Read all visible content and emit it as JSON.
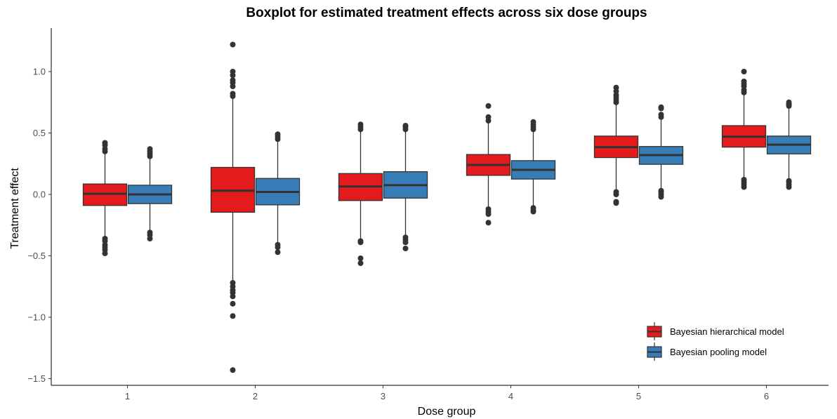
{
  "chart_data": {
    "type": "boxplot",
    "title": "Boxplot for estimated treatment effects across six dose groups",
    "xlabel": "Dose group",
    "ylabel": "Treatment effect",
    "categories": [
      "1",
      "2",
      "3",
      "4",
      "5",
      "6"
    ],
    "y_ticks": [
      "1.0",
      "0.5",
      "0.0",
      "−0.5",
      "−1.0",
      "−1.5"
    ],
    "y_tick_values": [
      1.0,
      0.5,
      0.0,
      -0.5,
      -1.0,
      -1.5
    ],
    "ylim": [
      -1.55,
      1.35
    ],
    "legend_position": "bottom-right",
    "series": [
      {
        "name": "Bayesian hierarchical model",
        "color": "#e41a1c",
        "boxes": [
          {
            "low": -0.34,
            "q1": -0.09,
            "median": 0.005,
            "q3": 0.085,
            "high": 0.34,
            "outliers": [
              -0.36,
              -0.38,
              -0.41,
              -0.43,
              -0.45,
              -0.48,
              0.35,
              0.37,
              0.4,
              0.42
            ]
          },
          {
            "low": -0.7,
            "q1": -0.145,
            "median": 0.03,
            "q3": 0.22,
            "high": 0.78,
            "outliers": [
              -0.72,
              -0.75,
              -0.78,
              -0.8,
              -0.83,
              -0.89,
              -0.99,
              -1.43,
              0.8,
              0.82,
              0.88,
              0.91,
              0.93,
              0.97,
              1.0,
              1.22
            ]
          },
          {
            "low": -0.36,
            "q1": -0.05,
            "median": 0.065,
            "q3": 0.17,
            "high": 0.52,
            "outliers": [
              -0.38,
              -0.39,
              -0.52,
              -0.56,
              0.53,
              0.55,
              0.57
            ]
          },
          {
            "low": -0.11,
            "q1": 0.155,
            "median": 0.24,
            "q3": 0.325,
            "high": 0.59,
            "outliers": [
              -0.12,
              -0.14,
              -0.16,
              -0.23,
              0.6,
              0.63,
              0.72
            ]
          },
          {
            "low": 0.04,
            "q1": 0.3,
            "median": 0.385,
            "q3": 0.475,
            "high": 0.74,
            "outliers": [
              0.0,
              0.02,
              -0.06,
              -0.07,
              0.75,
              0.77,
              0.79,
              0.81,
              0.84,
              0.87
            ]
          },
          {
            "low": 0.12,
            "q1": 0.385,
            "median": 0.47,
            "q3": 0.56,
            "high": 0.82,
            "outliers": [
              0.06,
              0.08,
              0.1,
              0.12,
              0.83,
              0.85,
              0.88,
              0.9,
              0.92,
              1.0
            ]
          }
        ]
      },
      {
        "name": "Bayesian pooling model",
        "color": "#377eb8",
        "boxes": [
          {
            "low": -0.3,
            "q1": -0.075,
            "median": 0.0,
            "q3": 0.075,
            "high": 0.3,
            "outliers": [
              -0.31,
              -0.33,
              -0.36,
              0.31,
              0.33,
              0.35,
              0.37
            ]
          },
          {
            "low": -0.4,
            "q1": -0.085,
            "median": 0.02,
            "q3": 0.13,
            "high": 0.44,
            "outliers": [
              -0.41,
              -0.43,
              -0.47,
              0.45,
              0.47,
              0.49
            ]
          },
          {
            "low": -0.34,
            "q1": -0.03,
            "median": 0.075,
            "q3": 0.185,
            "high": 0.52,
            "outliers": [
              -0.35,
              -0.37,
              -0.39,
              -0.44,
              0.53,
              0.55,
              0.56
            ]
          },
          {
            "low": -0.1,
            "q1": 0.125,
            "median": 0.2,
            "q3": 0.275,
            "high": 0.52,
            "outliers": [
              -0.11,
              -0.13,
              -0.14,
              0.53,
              0.55,
              0.57,
              0.59
            ]
          },
          {
            "low": 0.04,
            "q1": 0.245,
            "median": 0.32,
            "q3": 0.39,
            "high": 0.62,
            "outliers": [
              0.0,
              0.02,
              0.03,
              -0.02,
              0.63,
              0.65,
              0.7,
              0.71
            ]
          },
          {
            "low": 0.12,
            "q1": 0.33,
            "median": 0.405,
            "q3": 0.475,
            "high": 0.71,
            "outliers": [
              0.06,
              0.08,
              0.1,
              0.11,
              0.72,
              0.73,
              0.74,
              0.75
            ]
          }
        ]
      }
    ]
  }
}
